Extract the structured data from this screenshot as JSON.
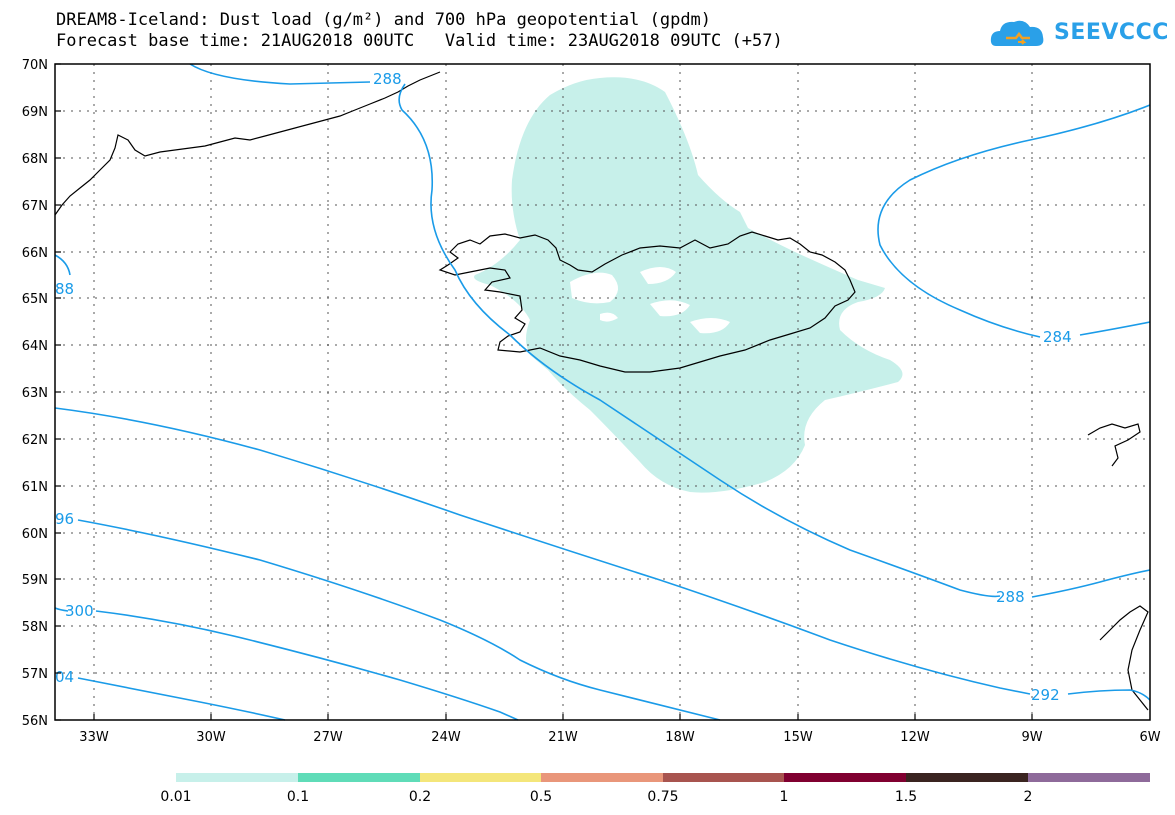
{
  "header": {
    "title_line1": "DREAM8-Iceland: Dust load (g/m²) and 700 hPa geopotential (gpdm)",
    "title_line2": "Forecast base time: 21AUG2018 00UTC   Valid time: 23AUG2018 09UTC (+57)",
    "logo_text": "SEEVCCC"
  },
  "map": {
    "lat_labels": [
      "70N",
      "69N",
      "68N",
      "67N",
      "66N",
      "65N",
      "64N",
      "63N",
      "62N",
      "61N",
      "60N",
      "59N",
      "58N",
      "57N",
      "56N"
    ],
    "lon_labels": [
      "33W",
      "30W",
      "27W",
      "24W",
      "21W",
      "18W",
      "15W",
      "12W",
      "9W",
      "6W"
    ],
    "contour_labels": [
      "288",
      "88",
      "284",
      "96",
      "300",
      "288",
      "04",
      "292"
    ],
    "contour_color": "#1a9be8",
    "dust_fill_color": "#c7f0ea"
  },
  "colorbar": {
    "labels": [
      "0.01",
      "0.1",
      "0.2",
      "0.5",
      "0.75",
      "1",
      "1.5",
      "2"
    ],
    "colors": [
      "#c7f0ea",
      "#5fdcb8",
      "#f4e67a",
      "#e9967a",
      "#a8544f",
      "#800030",
      "#3a2420",
      "#8e6a9a"
    ]
  }
}
